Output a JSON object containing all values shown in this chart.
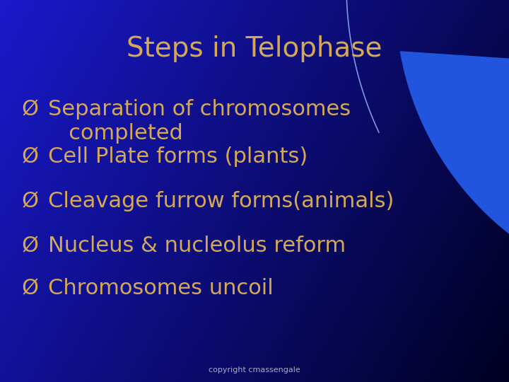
{
  "title": "Steps in Telophase",
  "title_color": "#D4A855",
  "title_fontsize": 28,
  "bullet_symbol": "Ø",
  "bullet_color": "#D4A855",
  "bullet_fontsize": 22,
  "bullets": [
    "Separation of chromosomes\n   completed",
    "Cell Plate forms (plants)",
    "Cleavage furrow forms(animals)",
    "Nucleus & nucleolus reform",
    "Chromosomes uncoil"
  ],
  "bg_color_main": "#1010CC",
  "bg_color_dark": "#000030",
  "copyright_text": "copyright cmassengale",
  "copyright_color": "#AAAACC",
  "copyright_fontsize": 8,
  "swoosh_color_thin": "#88AAFF",
  "swoosh_color_fill": "#2255DD",
  "swoosh_color_bright": "#4477FF"
}
